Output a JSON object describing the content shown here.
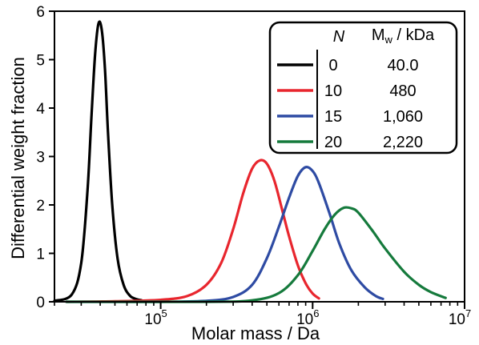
{
  "chart_data": {
    "type": "line",
    "x_scale": "log",
    "xlim": [
      20000,
      10000000
    ],
    "ylim": [
      0,
      6
    ],
    "xlabel": "Molar mass / Da",
    "ylabel": "Differential weight fraction",
    "x_ticks": [
      {
        "value": 100000,
        "base": "10",
        "exp": "5"
      },
      {
        "value": 1000000,
        "base": "10",
        "exp": "6"
      },
      {
        "value": 10000000,
        "base": "10",
        "exp": "7"
      }
    ],
    "y_ticks": [
      0,
      1,
      2,
      3,
      4,
      5,
      6
    ],
    "grid": false,
    "legend": {
      "position": "top-right",
      "header_n": "N",
      "header_mw_main": "M",
      "header_mw_sub": "w",
      "header_mw_unit": " / kDa",
      "entries": [
        {
          "n": "0",
          "mw": "40.0"
        },
        {
          "n": "10",
          "mw": "480"
        },
        {
          "n": "15",
          "mw": "1,060"
        },
        {
          "n": "20",
          "mw": "2,220"
        }
      ]
    },
    "series": [
      {
        "color": "#000000",
        "x": [
          20000,
          26000,
          30000,
          33000,
          35000,
          37000,
          39000,
          41000,
          43000,
          45000,
          48000,
          52000,
          57000,
          63000,
          70000,
          75000
        ],
        "y": [
          0.02,
          0.15,
          0.8,
          2.3,
          3.8,
          5.1,
          5.75,
          5.6,
          4.8,
          3.5,
          2.0,
          0.9,
          0.35,
          0.12,
          0.05,
          0.03
        ]
      },
      {
        "color": "#e8262e",
        "x": [
          24000,
          50000,
          100000,
          150000,
          200000,
          250000,
          300000,
          350000,
          400000,
          450000,
          500000,
          560000,
          630000,
          700000,
          800000,
          900000,
          1000000,
          1100000
        ],
        "y": [
          0.0,
          0.01,
          0.04,
          0.12,
          0.35,
          0.8,
          1.5,
          2.25,
          2.75,
          2.92,
          2.85,
          2.5,
          1.9,
          1.35,
          0.75,
          0.38,
          0.17,
          0.07
        ]
      },
      {
        "color": "#2e4ba3",
        "x": [
          24000,
          100000,
          200000,
          300000,
          400000,
          500000,
          600000,
          700000,
          800000,
          900000,
          1000000,
          1100000,
          1300000,
          1500000,
          1800000,
          2200000,
          2600000,
          2900000
        ],
        "y": [
          0.0,
          0.0,
          0.02,
          0.1,
          0.35,
          0.9,
          1.55,
          2.15,
          2.6,
          2.78,
          2.7,
          2.45,
          1.8,
          1.2,
          0.65,
          0.3,
          0.12,
          0.06
        ]
      },
      {
        "color": "#157a3c",
        "x": [
          24000,
          200000,
          400000,
          600000,
          800000,
          1000000,
          1200000,
          1400000,
          1600000,
          1800000,
          2000000,
          2500000,
          3000000,
          4000000,
          5000000,
          6000000,
          7500000
        ],
        "y": [
          0.0,
          0.0,
          0.03,
          0.18,
          0.55,
          1.05,
          1.5,
          1.8,
          1.94,
          1.93,
          1.84,
          1.45,
          1.1,
          0.62,
          0.35,
          0.2,
          0.08
        ]
      }
    ]
  }
}
